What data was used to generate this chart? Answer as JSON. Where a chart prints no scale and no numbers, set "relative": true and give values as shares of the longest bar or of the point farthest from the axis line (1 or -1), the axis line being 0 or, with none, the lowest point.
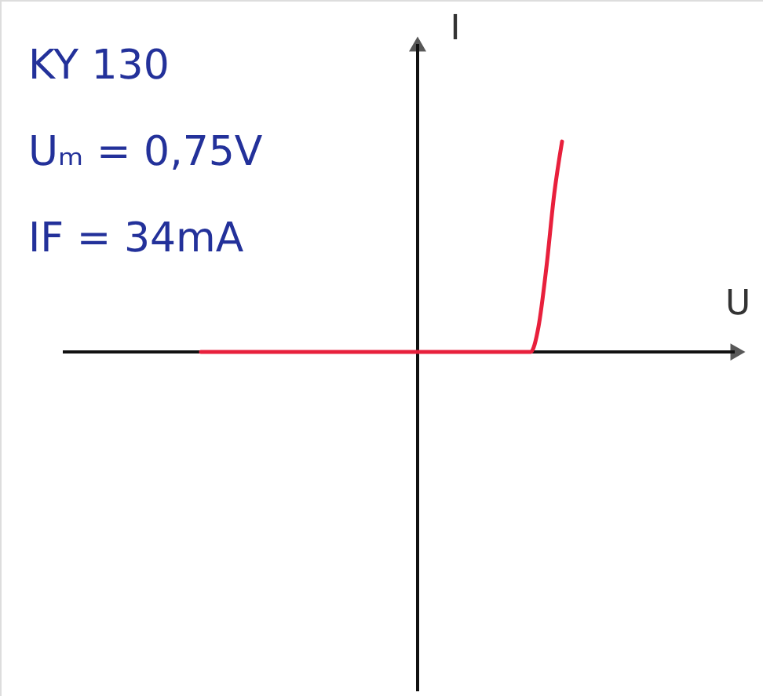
{
  "chart_data": {
    "type": "line",
    "relative": true,
    "xlabel": "U",
    "ylabel": "I",
    "categories": [
      null,
      null,
      null,
      null,
      null,
      null,
      null,
      null,
      null,
      null,
      null,
      null,
      null,
      null,
      null,
      null,
      null,
      null,
      null,
      null,
      null,
      null,
      null,
      null,
      null,
      null,
      null,
      null,
      null,
      null,
      null,
      null,
      null,
      null,
      null,
      null,
      null,
      null,
      null,
      null,
      null,
      null,
      null,
      null,
      null,
      null,
      null
    ],
    "series": [
      {
        "color": "#e8203c",
        "values": [
          0,
          0,
          0,
          0,
          0,
          0,
          0,
          0,
          0,
          0,
          0,
          0,
          0,
          0,
          0,
          0,
          0,
          0,
          0,
          0,
          0,
          0,
          0,
          0,
          0,
          0,
          0,
          0,
          0,
          0,
          0,
          0,
          0,
          0,
          0,
          0,
          0,
          0,
          0,
          0,
          0,
          0,
          0,
          0.12,
          0.4,
          0.75,
          1
        ]
      }
    ],
    "annotations": [
      "KY 130",
      "Uₘ = 0,75V",
      "IF = 34mA"
    ],
    "marker": "none",
    "line_style": "solid"
  }
}
